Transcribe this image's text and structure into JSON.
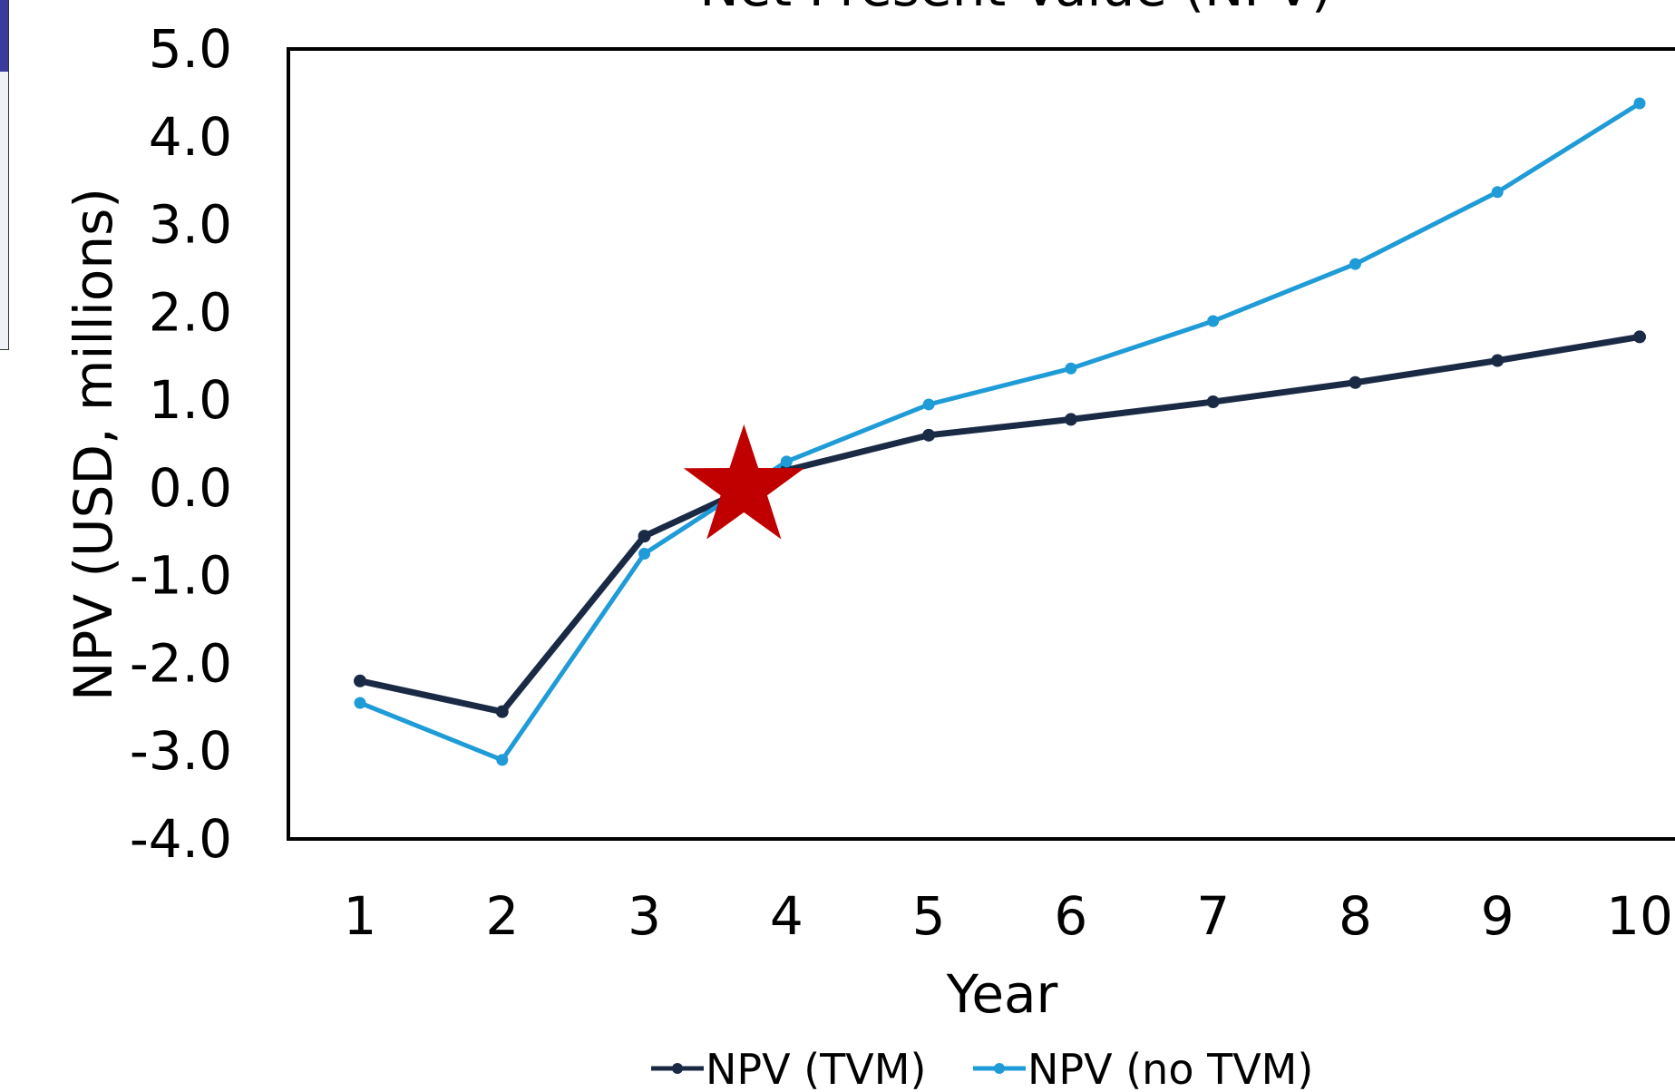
{
  "chart_data": {
    "type": "line",
    "title": "Net Present Value (NPV)",
    "xlabel": "Year",
    "ylabel": "NPV (USD, millions)",
    "categories": [
      "1",
      "2",
      "3",
      "4",
      "5",
      "6",
      "7",
      "8",
      "9",
      "10"
    ],
    "x": [
      1,
      2,
      3,
      4,
      5,
      6,
      7,
      8,
      9,
      10
    ],
    "ylim": [
      -4.0,
      5.0
    ],
    "ytick_labels": [
      "5.0",
      "4.0",
      "3.0",
      "2.0",
      "1.0",
      "0.0",
      "-1.0",
      "-2.0",
      "-3.0",
      "-4.0"
    ],
    "ytick_values": [
      5.0,
      4.0,
      3.0,
      2.0,
      1.0,
      0.0,
      -1.0,
      -2.0,
      -3.0,
      -4.0
    ],
    "grid": false,
    "legend_position": "bottom",
    "series": [
      {
        "name": "NPV (TVM)",
        "color": "#1a2a45",
        "values": [
          -2.2,
          -2.55,
          -0.55,
          0.2,
          0.6,
          0.78,
          0.98,
          1.2,
          1.45,
          1.72
        ]
      },
      {
        "name": "NPV (no TVM)",
        "color": "#1f9bd7",
        "values": [
          -2.45,
          -3.1,
          -0.75,
          0.3,
          0.95,
          1.36,
          1.9,
          2.55,
          3.37,
          4.38
        ]
      }
    ],
    "annotation": {
      "shape": "star",
      "x": 3.7,
      "y": 0.0,
      "color": "#c00000",
      "meaning": "breakeven point"
    }
  }
}
